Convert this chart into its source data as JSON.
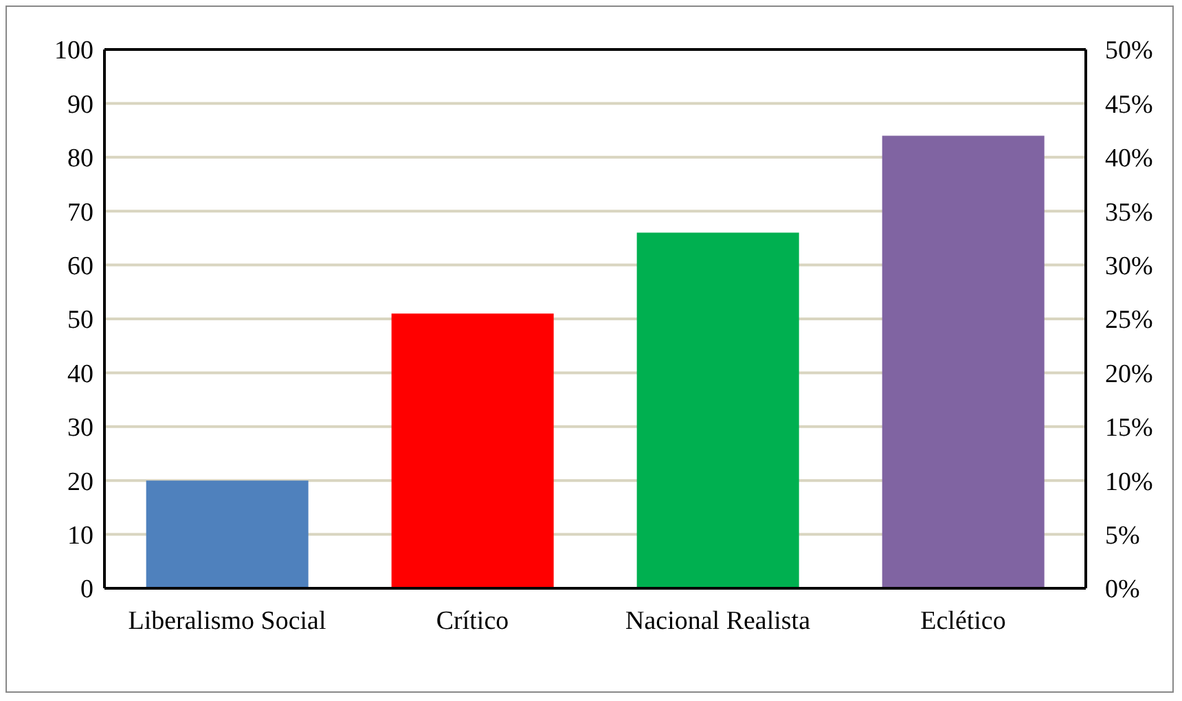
{
  "chart_data": {
    "type": "bar",
    "categories": [
      "Liberalismo Social",
      "Crítico",
      "Nacional Realista",
      "Eclético"
    ],
    "values": [
      20,
      51,
      66,
      84
    ],
    "colors": [
      "#4f81bd",
      "#ff0000",
      "#00b050",
      "#8064a2"
    ],
    "ylim": [
      0,
      100
    ],
    "yticks": [
      0,
      10,
      20,
      30,
      40,
      50,
      60,
      70,
      80,
      90,
      100
    ],
    "y2lim": [
      0,
      50
    ],
    "y2ticks": [
      {
        "value": 0,
        "label": "0%"
      },
      {
        "value": 5,
        "label": "5%"
      },
      {
        "value": 10,
        "label": "10%"
      },
      {
        "value": 15,
        "label": "15%"
      },
      {
        "value": 20,
        "label": "20%"
      },
      {
        "value": 25,
        "label": "25%"
      },
      {
        "value": 30,
        "label": "30%"
      },
      {
        "value": 35,
        "label": "35%"
      },
      {
        "value": 40,
        "label": "40%"
      },
      {
        "value": 45,
        "label": "45%"
      },
      {
        "value": 50,
        "label": "50%"
      }
    ],
    "grid": "y"
  }
}
